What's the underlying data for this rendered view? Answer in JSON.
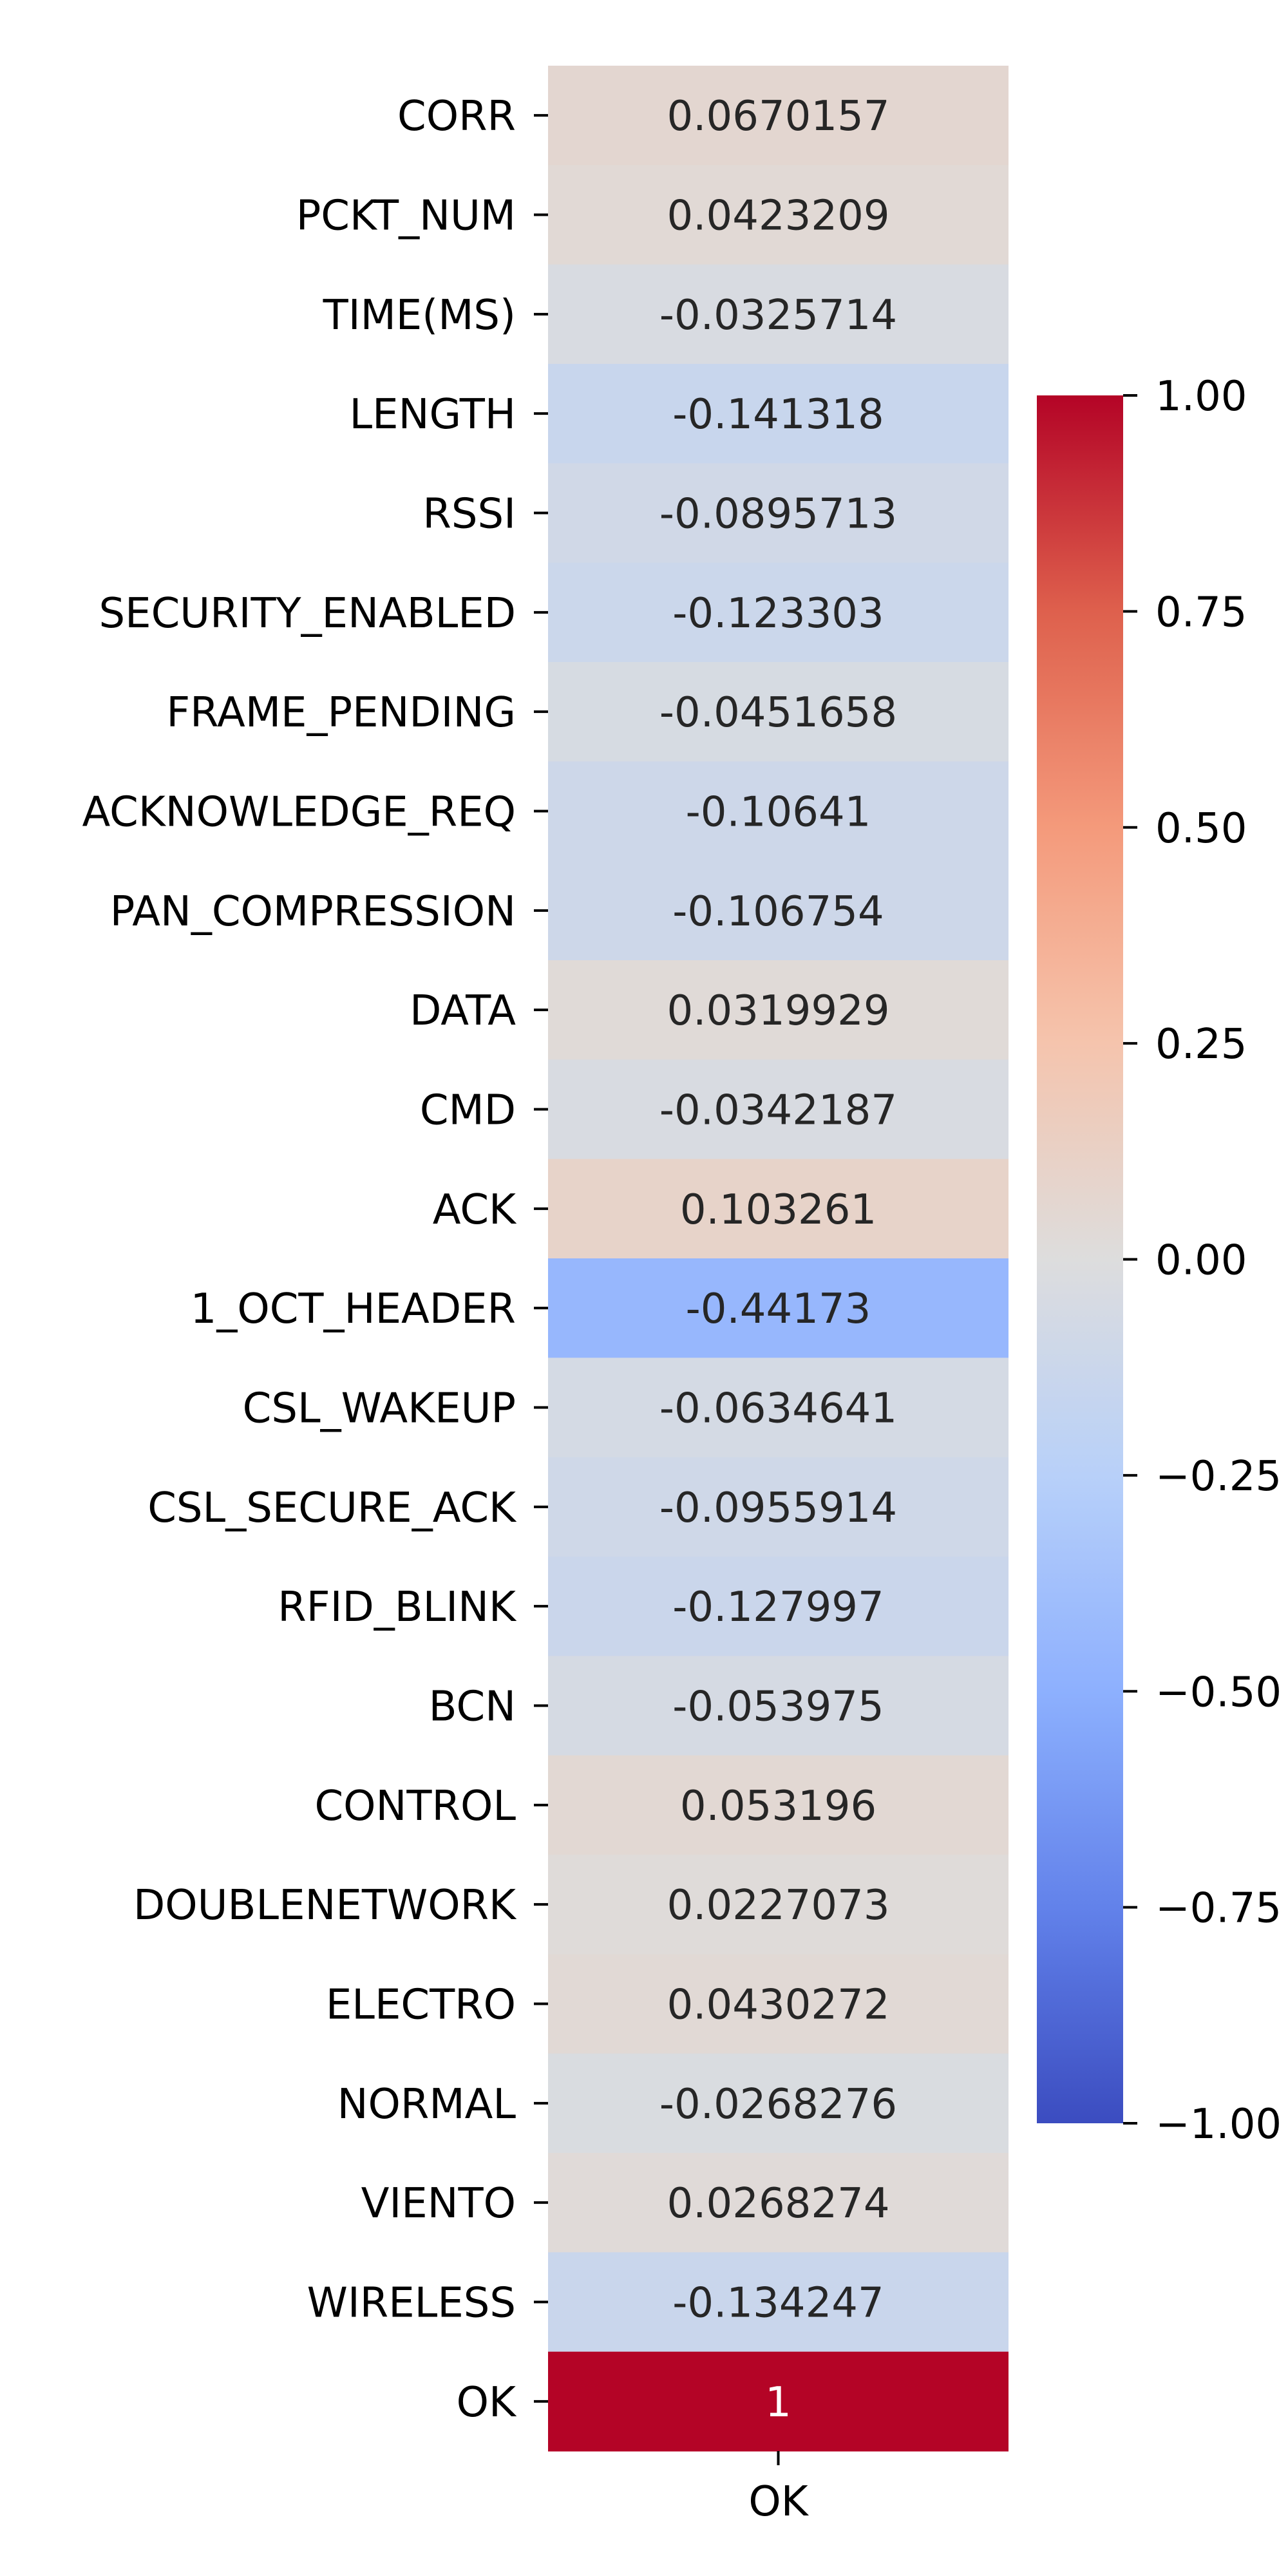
{
  "chart_data": {
    "type": "heatmap",
    "colormap": "coolwarm",
    "vmin": -1,
    "vmax": 1,
    "x_categories": [
      "OK"
    ],
    "y_categories": [
      "CORR",
      "PCKT_NUM",
      "TIME(MS)",
      "LENGTH",
      "RSSI",
      "SECURITY_ENABLED",
      "FRAME_PENDING",
      "ACKNOWLEDGE_REQ",
      "PAN_COMPRESSION",
      "DATA",
      "CMD",
      "ACK",
      "1_OCT_HEADER",
      "CSL_WAKEUP",
      "CSL_SECURE_ACK",
      "RFID_BLINK",
      "BCN",
      "CONTROL",
      "DOUBLENETWORK",
      "ELECTRO",
      "NORMAL",
      "VIENTO",
      "WIRELESS",
      "OK"
    ],
    "values": [
      0.0670157,
      0.0423209,
      -0.0325714,
      -0.141318,
      -0.0895713,
      -0.123303,
      -0.0451658,
      -0.10641,
      -0.106754,
      0.0319929,
      -0.0342187,
      0.103261,
      -0.44173,
      -0.0634641,
      -0.0955914,
      -0.127997,
      -0.053975,
      0.053196,
      0.0227073,
      0.0430272,
      -0.0268276,
      0.0268274,
      -0.134247,
      1
    ],
    "cell_labels": [
      "0.0670157",
      "0.0423209",
      "-0.0325714",
      "-0.141318",
      "-0.0895713",
      "-0.123303",
      "-0.0451658",
      "-0.10641",
      "-0.106754",
      "0.0319929",
      "-0.0342187",
      "0.103261",
      "-0.44173",
      "-0.0634641",
      "-0.0955914",
      "-0.127997",
      "-0.053975",
      "0.053196",
      "0.0227073",
      "0.0430272",
      "-0.0268276",
      "0.0268274",
      "-0.134247",
      "1"
    ],
    "colorbar": {
      "ticks": [
        1.0,
        0.75,
        0.5,
        0.25,
        0.0,
        -0.25,
        -0.5,
        -0.75,
        -1.0
      ],
      "tick_labels": [
        "1.00",
        "0.75",
        "0.50",
        "0.25",
        "0.00",
        "−0.25",
        "−0.50",
        "−0.75",
        "−1.00"
      ]
    },
    "title": "",
    "xlabel": "",
    "ylabel": ""
  }
}
